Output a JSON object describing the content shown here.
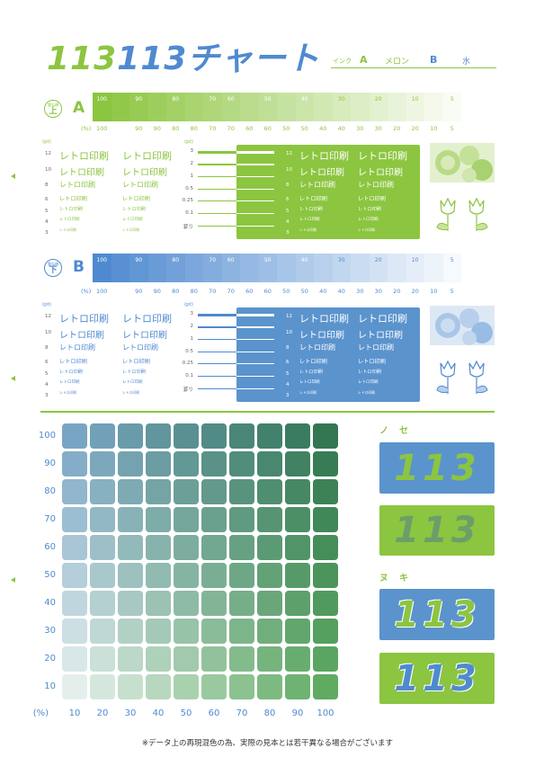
{
  "header": {
    "title_part1": "113",
    "title_part2": "113",
    "title_part3": "チャート",
    "ink_label": "インク",
    "ink_a": "A",
    "ink_a_name": "メロン",
    "ink_b": "B",
    "ink_b_name": "水"
  },
  "colors": {
    "green": "#8cc540",
    "blue": "#4f8ad0",
    "grid_blue": "#5b8fbf",
    "grid_green": "#3c8a4f"
  },
  "plate_a": {
    "badge_top": "重ね順",
    "badge_main": "上",
    "letter": "A",
    "strip_values": [
      "100",
      "90",
      "90",
      "80",
      "80",
      "70",
      "70",
      "60",
      "60",
      "50",
      "50",
      "40",
      "40",
      "30",
      "30",
      "20",
      "20",
      "10",
      "10",
      "5"
    ],
    "strip_top_labels": [
      "100",
      "",
      "90",
      "",
      "80",
      "",
      "70",
      "60",
      "",
      "50",
      "",
      "40",
      "",
      "30",
      "",
      "20",
      "",
      "10",
      "",
      "5"
    ],
    "pct_label": "(%)",
    "bottom_labels": [
      "100",
      "",
      "90",
      "90",
      "80",
      "80",
      "70",
      "70",
      "60",
      "60",
      "50",
      "50",
      "40",
      "40",
      "30",
      "30",
      "20",
      "20",
      "10",
      "5"
    ]
  },
  "plate_b": {
    "badge_top": "重ね順",
    "badge_main": "下",
    "letter": "B",
    "pct_label": "(%)",
    "bottom_labels": [
      "100",
      "",
      "90",
      "90",
      "80",
      "80",
      "70",
      "70",
      "60",
      "60",
      "50",
      "50",
      "40",
      "40",
      "30",
      "30",
      "20",
      "20",
      "10",
      "5"
    ]
  },
  "text_samples": {
    "pt_label": "(pt)",
    "sample_text": "レトロ印刷",
    "sizes": [
      "12",
      "10",
      "8",
      "6",
      "5",
      "4",
      "3"
    ],
    "line_sizes": [
      "3",
      "2",
      "1",
      "0.5",
      "0.25",
      "0.1",
      "罫り"
    ]
  },
  "grid": {
    "row_labels": [
      "100",
      "90",
      "80",
      "70",
      "60",
      "50",
      "40",
      "30",
      "20",
      "10"
    ],
    "col_labels": [
      "10",
      "20",
      "30",
      "40",
      "50",
      "60",
      "70",
      "80",
      "90",
      "100"
    ],
    "pct_label": "(%)"
  },
  "right_panels": {
    "title_noseta": "ノセ",
    "title_nuki": "ヌキ",
    "number": "113"
  },
  "footnote": "※データ上の再現混色の為、実際の見本とは若干異なる場合がございます"
}
